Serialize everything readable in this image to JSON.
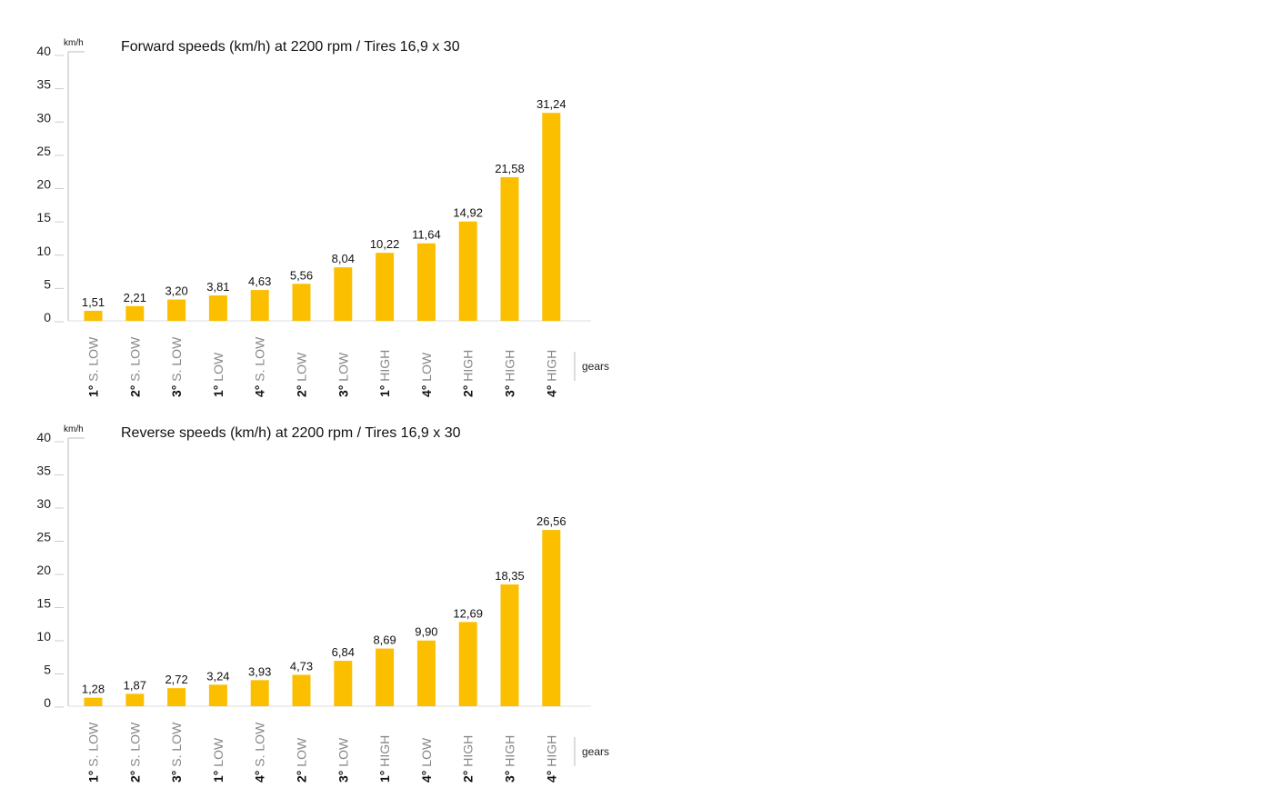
{
  "chart_data": [
    {
      "type": "bar",
      "title": "Forward speeds (km/h) at 2200 rpm / Tires 16,9 x 30",
      "unit_label": "km/h",
      "xlabel": "gears",
      "ylim": [
        0,
        40
      ],
      "yticks": [
        "0",
        "5",
        "10",
        "15",
        "20",
        "25",
        "30",
        "35",
        "40"
      ],
      "color": "#fbbf00",
      "categories": [
        {
          "num": "1°",
          "rest": " S. LOW"
        },
        {
          "num": "2°",
          "rest": " S. LOW"
        },
        {
          "num": "3°",
          "rest": " S. LOW"
        },
        {
          "num": "1°",
          "rest": " LOW"
        },
        {
          "num": "4°",
          "rest": " S. LOW"
        },
        {
          "num": "2°",
          "rest": " LOW"
        },
        {
          "num": "3°",
          "rest": " LOW"
        },
        {
          "num": "1°",
          "rest": " HIGH"
        },
        {
          "num": "4°",
          "rest": " LOW"
        },
        {
          "num": "2°",
          "rest": " HIGH"
        },
        {
          "num": "3°",
          "rest": " HIGH"
        },
        {
          "num": "4°",
          "rest": " HIGH"
        }
      ],
      "values": [
        1.51,
        2.21,
        3.2,
        3.81,
        4.63,
        5.56,
        8.04,
        10.22,
        11.64,
        14.92,
        21.58,
        31.24
      ],
      "value_labels": [
        "1,51",
        "2,21",
        "3,20",
        "3,81",
        "4,63",
        "5,56",
        "8,04",
        "10,22",
        "11,64",
        "14,92",
        "21,58",
        "31,24"
      ]
    },
    {
      "type": "bar",
      "title": "Reverse speeds (km/h) at 2200 rpm / Tires 16,9 x 30",
      "unit_label": "km/h",
      "xlabel": "gears",
      "ylim": [
        0,
        40
      ],
      "yticks": [
        "0",
        "5",
        "10",
        "15",
        "20",
        "25",
        "30",
        "35",
        "40"
      ],
      "color": "#fbbf00",
      "categories": [
        {
          "num": "1°",
          "rest": " S. LOW"
        },
        {
          "num": "2°",
          "rest": " S. LOW"
        },
        {
          "num": "3°",
          "rest": " S. LOW"
        },
        {
          "num": "1°",
          "rest": " LOW"
        },
        {
          "num": "4°",
          "rest": " S. LOW"
        },
        {
          "num": "2°",
          "rest": " LOW"
        },
        {
          "num": "3°",
          "rest": " LOW"
        },
        {
          "num": "1°",
          "rest": " HIGH"
        },
        {
          "num": "4°",
          "rest": " LOW"
        },
        {
          "num": "2°",
          "rest": " HIGH"
        },
        {
          "num": "3°",
          "rest": " HIGH"
        },
        {
          "num": "4°",
          "rest": " HIGH"
        }
      ],
      "values": [
        1.28,
        1.87,
        2.72,
        3.24,
        3.93,
        4.73,
        6.84,
        8.69,
        9.9,
        12.69,
        18.35,
        26.56
      ],
      "value_labels": [
        "1,28",
        "1,87",
        "2,72",
        "3,24",
        "3,93",
        "4,73",
        "6,84",
        "8,69",
        "9,90",
        "12,69",
        "18,35",
        "26,56"
      ]
    }
  ]
}
